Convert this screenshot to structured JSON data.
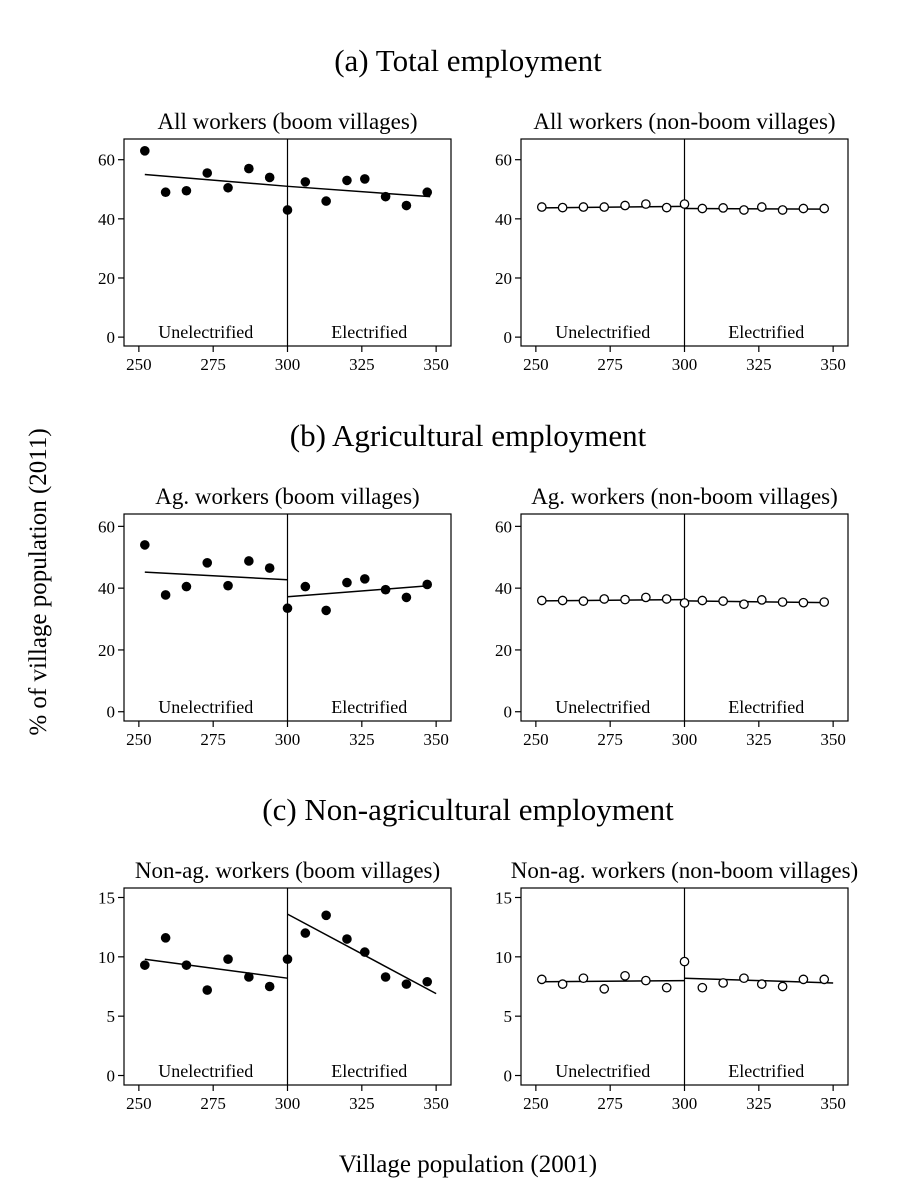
{
  "figure": {
    "ylabel": "% of village population (2011)",
    "xlabel": "Village population (2001)"
  },
  "sections": [
    {
      "title": "(a) Total employment"
    },
    {
      "title": "(b) Agricultural employment"
    },
    {
      "title": "(c) Non-agricultural employment"
    }
  ],
  "chart_data": [
    {
      "type": "scatter",
      "title": "All workers (boom villages)",
      "marker": "filled",
      "xlim": [
        245,
        355
      ],
      "ylim": [
        -3,
        67
      ],
      "xticks": [
        250,
        275,
        300,
        325,
        350
      ],
      "yticks": [
        0,
        20,
        40,
        60
      ],
      "threshold": 300,
      "region_labels": [
        "Unelectrified",
        "Electrified"
      ],
      "points": [
        [
          252,
          63
        ],
        [
          259,
          49
        ],
        [
          266,
          49.5
        ],
        [
          273,
          55.5
        ],
        [
          280,
          50.5
        ],
        [
          287,
          57
        ],
        [
          294,
          54
        ],
        [
          300,
          43
        ],
        [
          306,
          52.5
        ],
        [
          313,
          46
        ],
        [
          320,
          53
        ],
        [
          326,
          53.5
        ],
        [
          333,
          47.5
        ],
        [
          340,
          44.5
        ],
        [
          347,
          49
        ]
      ],
      "fit_left": [
        [
          252,
          55
        ],
        [
          300,
          51
        ]
      ],
      "fit_right": [
        [
          300,
          51
        ],
        [
          348,
          47.5
        ]
      ]
    },
    {
      "type": "scatter",
      "title": "All workers (non-boom villages)",
      "marker": "hollow",
      "xlim": [
        245,
        355
      ],
      "ylim": [
        -3,
        67
      ],
      "xticks": [
        250,
        275,
        300,
        325,
        350
      ],
      "yticks": [
        0,
        20,
        40,
        60
      ],
      "threshold": 300,
      "region_labels": [
        "Unelectrified",
        "Electrified"
      ],
      "points": [
        [
          252,
          44
        ],
        [
          259,
          43.8
        ],
        [
          266,
          44
        ],
        [
          273,
          44
        ],
        [
          280,
          44.5
        ],
        [
          287,
          45
        ],
        [
          294,
          43.8
        ],
        [
          300,
          45
        ],
        [
          306,
          43.5
        ],
        [
          313,
          43.7
        ],
        [
          320,
          43
        ],
        [
          326,
          44
        ],
        [
          333,
          43
        ],
        [
          340,
          43.5
        ],
        [
          347,
          43.5
        ]
      ],
      "fit_left": [
        [
          252,
          43.7
        ],
        [
          300,
          44.2
        ]
      ],
      "fit_right": [
        [
          300,
          43.5
        ],
        [
          348,
          43.3
        ]
      ]
    },
    {
      "type": "scatter",
      "title": "Ag. workers (boom villages)",
      "marker": "filled",
      "xlim": [
        245,
        355
      ],
      "ylim": [
        -3,
        64
      ],
      "xticks": [
        250,
        275,
        300,
        325,
        350
      ],
      "yticks": [
        0,
        20,
        40,
        60
      ],
      "threshold": 300,
      "region_labels": [
        "Unelectrified",
        "Electrified"
      ],
      "points": [
        [
          252,
          54
        ],
        [
          259,
          37.8
        ],
        [
          266,
          40.5
        ],
        [
          273,
          48.2
        ],
        [
          280,
          40.8
        ],
        [
          287,
          48.8
        ],
        [
          294,
          46.5
        ],
        [
          300,
          33.5
        ],
        [
          306,
          40.5
        ],
        [
          313,
          32.8
        ],
        [
          320,
          41.8
        ],
        [
          326,
          43
        ],
        [
          333,
          39.5
        ],
        [
          340,
          37
        ],
        [
          347,
          41.2
        ]
      ],
      "fit_left": [
        [
          252,
          45.2
        ],
        [
          300,
          42.7
        ]
      ],
      "fit_right": [
        [
          300,
          37.2
        ],
        [
          348,
          40.8
        ]
      ]
    },
    {
      "type": "scatter",
      "title": "Ag. workers (non-boom villages)",
      "marker": "hollow",
      "xlim": [
        245,
        355
      ],
      "ylim": [
        -3,
        64
      ],
      "xticks": [
        250,
        275,
        300,
        325,
        350
      ],
      "yticks": [
        0,
        20,
        40,
        60
      ],
      "threshold": 300,
      "region_labels": [
        "Unelectrified",
        "Electrified"
      ],
      "points": [
        [
          252,
          36
        ],
        [
          259,
          36
        ],
        [
          266,
          35.8
        ],
        [
          273,
          36.5
        ],
        [
          280,
          36.3
        ],
        [
          287,
          37
        ],
        [
          294,
          36.5
        ],
        [
          300,
          35.2
        ],
        [
          306,
          36
        ],
        [
          313,
          35.8
        ],
        [
          320,
          34.8
        ],
        [
          326,
          36.2
        ],
        [
          333,
          35.5
        ],
        [
          340,
          35.3
        ],
        [
          347,
          35.5
        ]
      ],
      "fit_left": [
        [
          252,
          35.9
        ],
        [
          300,
          36.3
        ]
      ],
      "fit_right": [
        [
          300,
          35.9
        ],
        [
          348,
          35.3
        ]
      ]
    },
    {
      "type": "scatter",
      "title": "Non-ag. workers (boom villages)",
      "marker": "filled",
      "xlim": [
        245,
        355
      ],
      "ylim": [
        -0.8,
        15.8
      ],
      "xticks": [
        250,
        275,
        300,
        325,
        350
      ],
      "yticks": [
        0,
        5,
        10,
        15
      ],
      "threshold": 300,
      "region_labels": [
        "Unelectrified",
        "Electrified"
      ],
      "points": [
        [
          252,
          9.3
        ],
        [
          259,
          11.6
        ],
        [
          266,
          9.3
        ],
        [
          273,
          7.2
        ],
        [
          280,
          9.8
        ],
        [
          287,
          8.3
        ],
        [
          294,
          7.5
        ],
        [
          300,
          9.8
        ],
        [
          306,
          12
        ],
        [
          313,
          13.5
        ],
        [
          320,
          11.5
        ],
        [
          326,
          10.4
        ],
        [
          333,
          8.3
        ],
        [
          340,
          7.7
        ],
        [
          347,
          7.9
        ]
      ],
      "fit_left": [
        [
          252,
          9.8
        ],
        [
          300,
          8.2
        ]
      ],
      "fit_right": [
        [
          300,
          13.6
        ],
        [
          350,
          6.9
        ]
      ]
    },
    {
      "type": "scatter",
      "title": "Non-ag. workers (non-boom villages)",
      "marker": "hollow",
      "xlim": [
        245,
        355
      ],
      "ylim": [
        -0.8,
        15.8
      ],
      "xticks": [
        250,
        275,
        300,
        325,
        350
      ],
      "yticks": [
        0,
        5,
        10,
        15
      ],
      "threshold": 300,
      "region_labels": [
        "Unelectrified",
        "Electrified"
      ],
      "points": [
        [
          252,
          8.1
        ],
        [
          259,
          7.7
        ],
        [
          266,
          8.2
        ],
        [
          273,
          7.3
        ],
        [
          280,
          8.4
        ],
        [
          287,
          8
        ],
        [
          294,
          7.4
        ],
        [
          300,
          9.6
        ],
        [
          306,
          7.4
        ],
        [
          313,
          7.8
        ],
        [
          320,
          8.2
        ],
        [
          326,
          7.7
        ],
        [
          333,
          7.5
        ],
        [
          340,
          8.1
        ],
        [
          347,
          8.1
        ]
      ],
      "fit_left": [
        [
          252,
          7.9
        ],
        [
          300,
          8.0
        ]
      ],
      "fit_right": [
        [
          300,
          8.2
        ],
        [
          350,
          7.8
        ]
      ]
    }
  ]
}
